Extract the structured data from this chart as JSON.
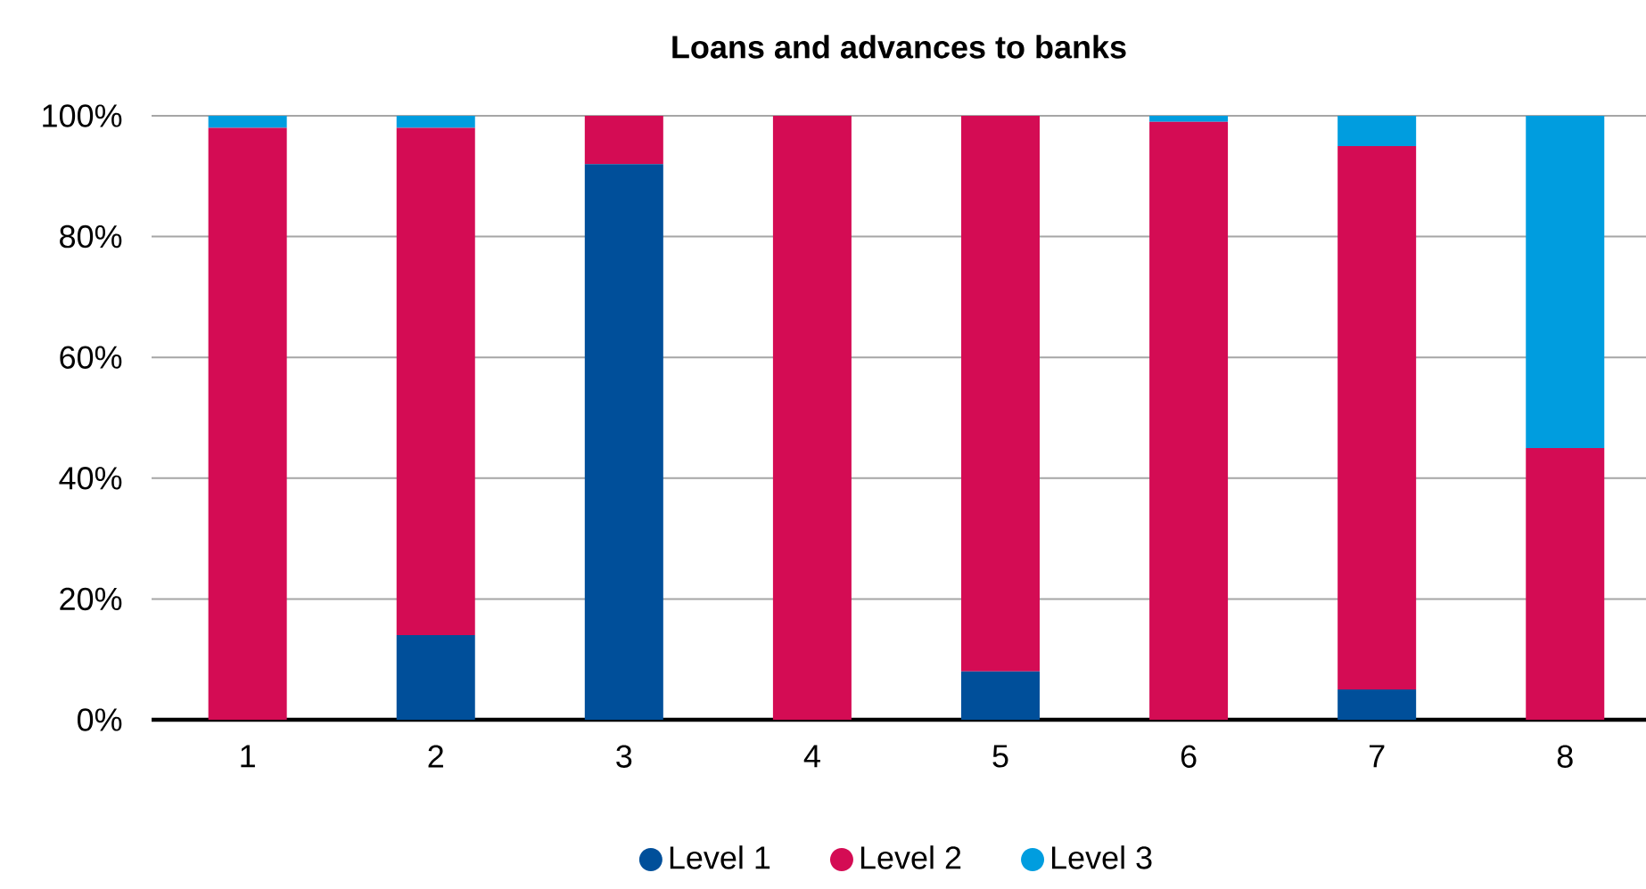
{
  "chart_data": {
    "type": "bar",
    "title": "Loans and advances to banks",
    "stacked": true,
    "categories": [
      "1",
      "2",
      "3",
      "4",
      "5",
      "6",
      "7",
      "8"
    ],
    "series": [
      {
        "name": "Level 1",
        "color": "#004f9a",
        "values": [
          0,
          14,
          92,
          0,
          8,
          0,
          5,
          0
        ]
      },
      {
        "name": "Level 2",
        "color": "#d40c54",
        "values": [
          98,
          84,
          8,
          100,
          92,
          99,
          90,
          45
        ]
      },
      {
        "name": "Level 3",
        "color": "#009ddf",
        "values": [
          2,
          2,
          0,
          0,
          0,
          1,
          5,
          55
        ]
      }
    ],
    "ylim": [
      0,
      100
    ],
    "yticks": [
      {
        "value": 0,
        "label": "0%"
      },
      {
        "value": 20,
        "label": "20%"
      },
      {
        "value": 40,
        "label": "40%"
      },
      {
        "value": 60,
        "label": "60%"
      },
      {
        "value": 80,
        "label": "80%"
      },
      {
        "value": 100,
        "label": "100%"
      }
    ],
    "grid": "y",
    "legend": "bottom"
  }
}
